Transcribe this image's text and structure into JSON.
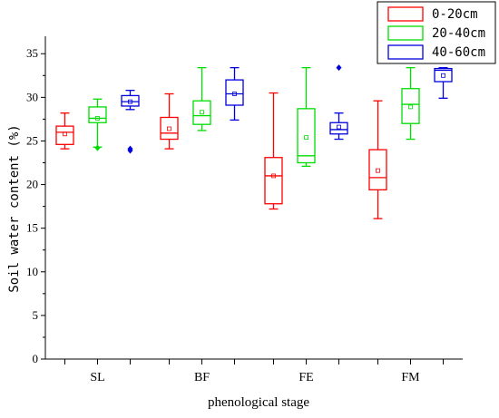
{
  "chart_data": {
    "type": "box",
    "xlabel": "phenological stage",
    "ylabel": "Soil water content (%)",
    "ylim": [
      0,
      37
    ],
    "yticks": [
      0,
      5,
      10,
      15,
      20,
      25,
      30,
      35
    ],
    "categories": [
      "SL",
      "BF",
      "FE",
      "FM"
    ],
    "legend_position": "top-right",
    "series": [
      {
        "name": "0-20cm",
        "color": "#ff0000",
        "boxes": [
          {
            "whisker_low": 24.1,
            "q1": 24.6,
            "median": 26.0,
            "q3": 26.7,
            "whisker_high": 28.2,
            "mean": 25.8,
            "outliers": []
          },
          {
            "whisker_low": 24.1,
            "q1": 25.2,
            "median": 25.9,
            "q3": 27.7,
            "whisker_high": 30.4,
            "mean": 26.4,
            "outliers": []
          },
          {
            "whisker_low": 17.2,
            "q1": 17.8,
            "median": 21.0,
            "q3": 23.1,
            "whisker_high": 30.5,
            "mean": 21.0,
            "outliers": []
          },
          {
            "whisker_low": 16.1,
            "q1": 19.4,
            "median": 20.8,
            "q3": 24.0,
            "whisker_high": 29.6,
            "mean": 21.6,
            "outliers": []
          }
        ]
      },
      {
        "name": "20-40cm",
        "color": "#00dd00",
        "boxes": [
          {
            "whisker_low": 24.3,
            "q1": 27.1,
            "median": 27.6,
            "q3": 28.9,
            "whisker_high": 29.8,
            "mean": 27.6,
            "outliers": [
              24.2
            ]
          },
          {
            "whisker_low": 26.2,
            "q1": 26.9,
            "median": 27.9,
            "q3": 29.6,
            "whisker_high": 33.4,
            "mean": 28.3,
            "outliers": []
          },
          {
            "whisker_low": 22.1,
            "q1": 22.5,
            "median": 23.3,
            "q3": 28.7,
            "whisker_high": 33.4,
            "mean": 25.4,
            "outliers": []
          },
          {
            "whisker_low": 25.2,
            "q1": 27.0,
            "median": 29.2,
            "q3": 31.0,
            "whisker_high": 33.4,
            "mean": 28.9,
            "outliers": []
          }
        ]
      },
      {
        "name": "40-60cm",
        "color": "#0000dd",
        "boxes": [
          {
            "whisker_low": 28.6,
            "q1": 29.0,
            "median": 29.5,
            "q3": 30.2,
            "whisker_high": 30.8,
            "mean": 29.5,
            "outliers": [
              24.1,
              23.9
            ]
          },
          {
            "whisker_low": 27.4,
            "q1": 29.1,
            "median": 30.4,
            "q3": 32.0,
            "whisker_high": 33.4,
            "mean": 30.4,
            "outliers": []
          },
          {
            "whisker_low": 25.2,
            "q1": 25.8,
            "median": 26.3,
            "q3": 27.1,
            "whisker_high": 28.2,
            "mean": 26.6,
            "outliers": [
              33.4
            ]
          },
          {
            "whisker_low": 29.9,
            "q1": 31.8,
            "median": 33.1,
            "q3": 33.3,
            "whisker_high": 33.4,
            "mean": 32.5,
            "outliers": []
          }
        ]
      }
    ]
  }
}
